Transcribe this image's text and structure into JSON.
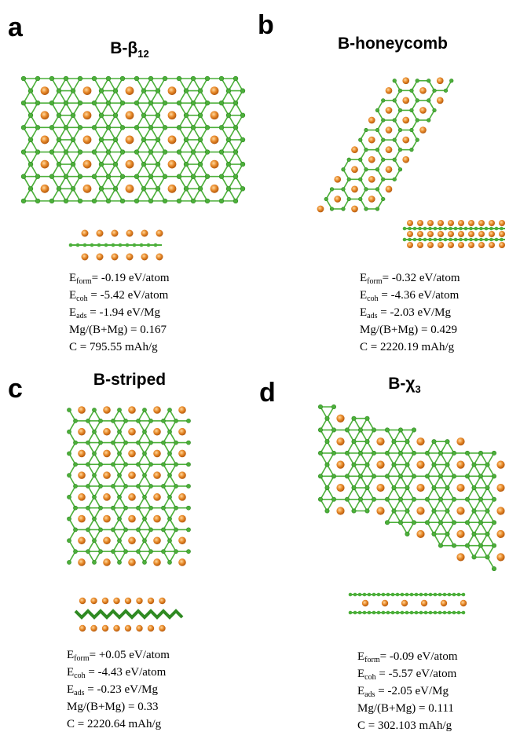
{
  "panels": [
    {
      "letter": "a",
      "title": {
        "main": "B-β",
        "sub": "12"
      },
      "properties": [
        {
          "symbol": "E",
          "sub": "form",
          "text": "= -0.19 eV/atom"
        },
        {
          "symbol": "E",
          "sub": "coh",
          "text": " = -5.42 eV/atom"
        },
        {
          "symbol": "E",
          "sub": "ads",
          "text": " = -1.94 eV/Mg"
        },
        {
          "text": "Mg/(B+Mg) = 0.167"
        },
        {
          "text": "C = 795.55 mAh/g"
        }
      ]
    },
    {
      "letter": "b",
      "title": {
        "main": "B-honeycomb"
      },
      "properties": [
        {
          "symbol": "E",
          "sub": "form",
          "text": "= -0.32 eV/atom"
        },
        {
          "symbol": "E",
          "sub": "coh",
          "text": " = -4.36 eV/atom"
        },
        {
          "symbol": "E",
          "sub": "ads",
          "text": " = -2.03 eV/Mg"
        },
        {
          "text": "Mg/(B+Mg) = 0.429"
        },
        {
          "text": "C = 2220.19 mAh/g"
        }
      ]
    },
    {
      "letter": "c",
      "title": {
        "main": "B-striped"
      },
      "properties": [
        {
          "symbol": "E",
          "sub": "form",
          "text": "= +0.05 eV/atom"
        },
        {
          "symbol": "E",
          "sub": "coh",
          "text": " = -4.43 eV/atom"
        },
        {
          "symbol": "E",
          "sub": "ads",
          "text": " = -0.23 eV/Mg"
        },
        {
          "text": "Mg/(B+Mg) = 0.33"
        },
        {
          "text": "C = 2220.64 mAh/g"
        }
      ]
    },
    {
      "letter": "d",
      "title": {
        "main": "B-χ",
        "sub": "3"
      },
      "properties": [
        {
          "symbol": "E",
          "sub": "form",
          "text": "= -0.09 eV/atom"
        },
        {
          "symbol": "E",
          "sub": "coh",
          "text": " = -5.57 eV/atom"
        },
        {
          "symbol": "E",
          "sub": "ads",
          "text": " = -2.05 eV/Mg"
        },
        {
          "text": "Mg/(B+Mg) = 0.111"
        },
        {
          "text": "C = 302.103 mAh/g"
        }
      ]
    }
  ]
}
